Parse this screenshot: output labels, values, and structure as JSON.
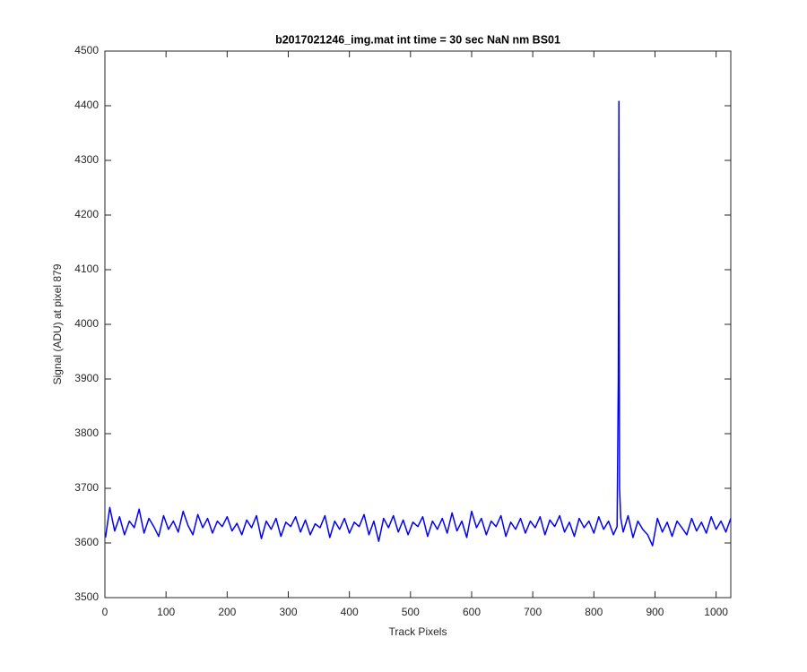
{
  "chart_data": {
    "type": "line",
    "title": "b2017021246_img.mat int time = 30 sec  NaN nm BS01",
    "x_label": "Track Pixels",
    "y_label": "Signal (ADU) at pixel 879",
    "xlim": [
      0,
      1024
    ],
    "ylim": [
      3500,
      4500
    ],
    "xticks": [
      0,
      100,
      200,
      300,
      400,
      500,
      600,
      700,
      800,
      900,
      1000
    ],
    "yticks": [
      3500,
      3600,
      3700,
      3800,
      3900,
      4000,
      4100,
      4200,
      4300,
      4400,
      4500
    ],
    "grid": false,
    "x": [
      1,
      8,
      16,
      24,
      32,
      40,
      48,
      56,
      64,
      72,
      80,
      88,
      96,
      104,
      112,
      120,
      128,
      136,
      144,
      152,
      160,
      168,
      176,
      184,
      192,
      200,
      208,
      216,
      224,
      232,
      240,
      248,
      256,
      264,
      272,
      280,
      288,
      296,
      304,
      312,
      320,
      328,
      336,
      344,
      352,
      360,
      368,
      376,
      384,
      392,
      400,
      408,
      416,
      424,
      432,
      440,
      448,
      456,
      464,
      472,
      480,
      488,
      496,
      504,
      512,
      520,
      528,
      536,
      544,
      552,
      560,
      568,
      576,
      584,
      592,
      600,
      608,
      616,
      624,
      632,
      640,
      648,
      656,
      664,
      672,
      680,
      688,
      696,
      704,
      712,
      720,
      728,
      736,
      744,
      752,
      760,
      768,
      776,
      784,
      792,
      800,
      808,
      816,
      824,
      832,
      838,
      840,
      841,
      842,
      844,
      848,
      856,
      864,
      872,
      880,
      888,
      896,
      904,
      912,
      920,
      928,
      936,
      944,
      952,
      960,
      968,
      976,
      984,
      992,
      1000,
      1008,
      1016,
      1024
    ],
    "series": [
      {
        "name": "Signal",
        "color": "#0000ff",
        "values": [
          3610,
          3665,
          3622,
          3648,
          3615,
          3640,
          3628,
          3662,
          3618,
          3645,
          3630,
          3612,
          3650,
          3625,
          3640,
          3620,
          3658,
          3632,
          3615,
          3652,
          3628,
          3645,
          3618,
          3640,
          3630,
          3648,
          3622,
          3636,
          3615,
          3642,
          3628,
          3650,
          3608,
          3640,
          3625,
          3645,
          3612,
          3638,
          3630,
          3648,
          3620,
          3642,
          3615,
          3635,
          3628,
          3650,
          3610,
          3640,
          3625,
          3645,
          3618,
          3638,
          3630,
          3652,
          3615,
          3640,
          3603,
          3645,
          3628,
          3650,
          3620,
          3642,
          3615,
          3638,
          3630,
          3648,
          3612,
          3640,
          3625,
          3645,
          3618,
          3655,
          3622,
          3640,
          3610,
          3658,
          3628,
          3645,
          3615,
          3640,
          3630,
          3650,
          3612,
          3638,
          3625,
          3645,
          3618,
          3640,
          3628,
          3648,
          3615,
          3642,
          3630,
          3650,
          3620,
          3638,
          3612,
          3645,
          3628,
          3640,
          3618,
          3648,
          3625,
          3640,
          3615,
          3630,
          3900,
          4408,
          3700,
          3645,
          3620,
          3650,
          3610,
          3640,
          3625,
          3615,
          3595,
          3645,
          3620,
          3638,
          3612,
          3640,
          3628,
          3615,
          3645,
          3622,
          3638,
          3618,
          3648,
          3625,
          3640,
          3620,
          3645
        ]
      }
    ]
  }
}
